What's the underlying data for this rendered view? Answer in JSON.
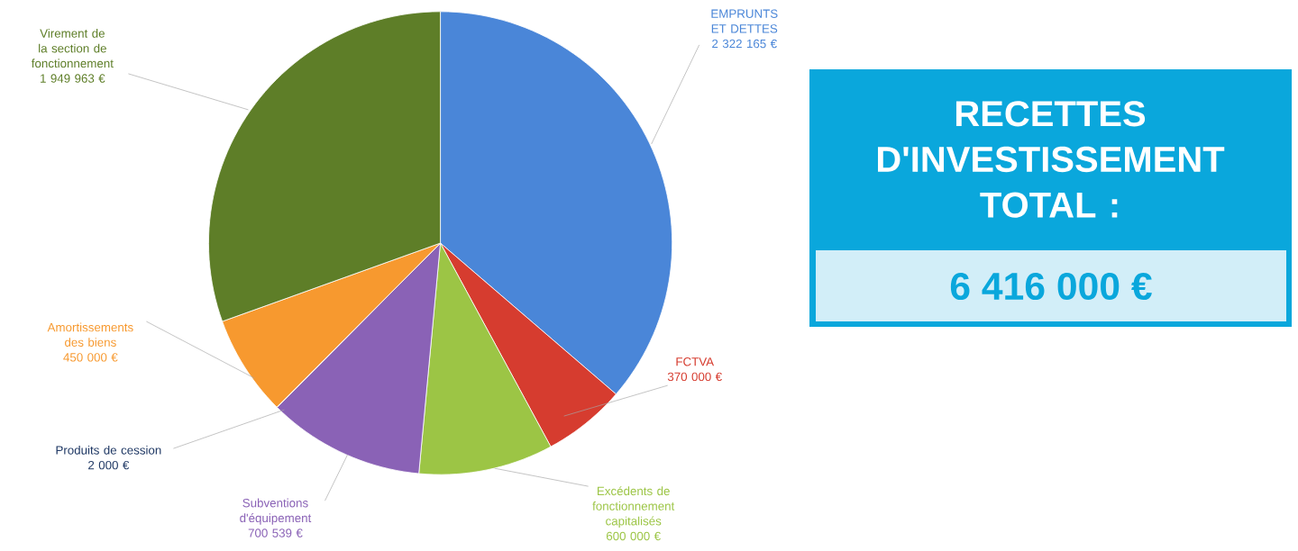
{
  "chart_data": [
    {
      "type": "pie",
      "categories": [
        "EMPRUNTS ET DETTES",
        "FCTVA",
        "Excédents de fonctionnement capitalisés",
        "Subventions d'équipement",
        "Produits de cession",
        "Amortissements des biens",
        "Virement de la section de fonctionnement"
      ],
      "values": [
        2322165,
        370000,
        600000,
        700539,
        2000,
        450000,
        1949963
      ],
      "value_labels": [
        "2 322 165 €",
        "370 000 €",
        "600 000 €",
        "700 539 €",
        "2 000 €",
        "450 000 €",
        "1 949 963 €"
      ],
      "colors": [
        "#4a86d8",
        "#d63c2f",
        "#9cc545",
        "#8a62b6",
        "#1f3864",
        "#f7992f",
        "#5e7e28"
      ]
    },
    {
      "type": "other",
      "title": "RECETTES D'INVESTISSEMENT TOTAL :",
      "annotations": [
        "6 416 000 €"
      ]
    }
  ]
}
